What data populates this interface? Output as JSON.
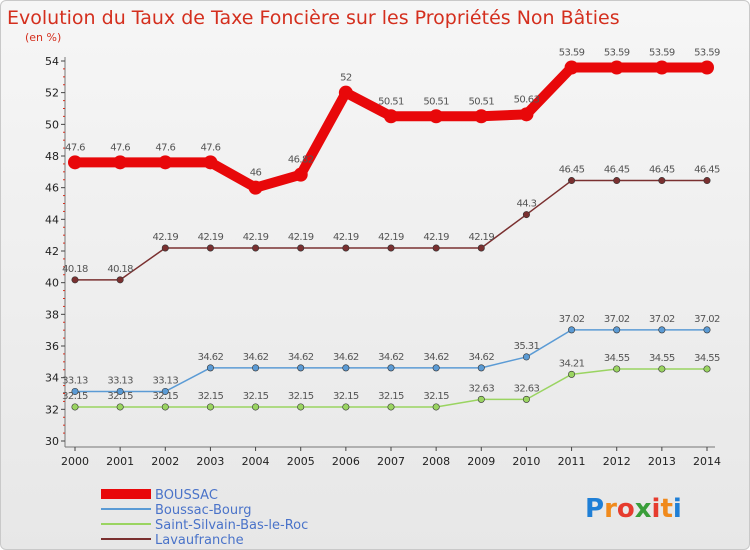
{
  "chart_data": {
    "type": "line",
    "title": "Evolution du Taux de Taxe Foncière sur les Propriétés Non Bâties",
    "subtitle": "(en %)",
    "xlabel": "",
    "ylabel": "",
    "ylim": [
      30,
      54
    ],
    "yticks": [
      30,
      32,
      34,
      36,
      38,
      40,
      42,
      44,
      46,
      48,
      50,
      52,
      54
    ],
    "categories": [
      "2000",
      "2001",
      "2002",
      "2003",
      "2004",
      "2005",
      "2006",
      "2007",
      "2008",
      "2009",
      "2010",
      "2011",
      "2012",
      "2013",
      "2014"
    ],
    "series": [
      {
        "name": "BOUSSAC",
        "color": "#e8080a",
        "emphasis": true,
        "values": [
          47.6,
          47.6,
          47.6,
          47.6,
          46,
          46.82,
          52,
          50.51,
          50.51,
          50.51,
          50.63,
          53.59,
          53.59,
          53.59,
          53.59
        ],
        "labels": [
          "47.6",
          "47.6",
          "47.6",
          "47.6",
          "46",
          "46.82",
          "52",
          "50.51",
          "50.51",
          "50.51",
          "50.63",
          "53.59",
          "53.59",
          "53.59",
          "53.59"
        ]
      },
      {
        "name": "Boussac-Bourg",
        "color": "#5b9bd5",
        "values": [
          33.13,
          33.13,
          33.13,
          34.62,
          34.62,
          34.62,
          34.62,
          34.62,
          34.62,
          34.62,
          35.31,
          37.02,
          37.02,
          37.02,
          37.02
        ],
        "labels": [
          "33.13",
          "33.13",
          "33.13",
          "34.62",
          "34.62",
          "34.62",
          "34.62",
          "34.62",
          "34.62",
          "34.62",
          "35.31",
          "37.02",
          "37.02",
          "37.02",
          "37.02"
        ]
      },
      {
        "name": "Saint-Silvain-Bas-le-Roc",
        "color": "#9ad461",
        "values": [
          32.15,
          32.15,
          32.15,
          32.15,
          32.15,
          32.15,
          32.15,
          32.15,
          32.15,
          32.63,
          32.63,
          34.21,
          34.55,
          34.55,
          34.55
        ],
        "labels": [
          "32.15",
          "32.15",
          "32.15",
          "32.15",
          "32.15",
          "32.15",
          "32.15",
          "32.15",
          "32.15",
          "32.63",
          "32.63",
          "34.21",
          "34.55",
          "34.55",
          "34.55"
        ]
      },
      {
        "name": "Lavaufranche",
        "color": "#7a3030",
        "values": [
          40.18,
          40.18,
          42.19,
          42.19,
          42.19,
          42.19,
          42.19,
          42.19,
          42.19,
          42.19,
          44.3,
          46.45,
          46.45,
          46.45,
          46.45
        ],
        "labels": [
          "40.18",
          "40.18",
          "42.19",
          "42.19",
          "42.19",
          "42.19",
          "42.19",
          "42.19",
          "42.19",
          "42.19",
          "44.3",
          "46.45",
          "46.45",
          "46.45",
          "46.45"
        ]
      }
    ],
    "legend": "bottom-left",
    "grid": false
  },
  "brand": {
    "letters": [
      "P",
      "r",
      "o",
      "x",
      "i",
      "t",
      "i"
    ],
    "colors": [
      "#1f7fd6",
      "#f08a1c",
      "#e63b2e",
      "#3a9e3a",
      "#e63b2e",
      "#f08a1c",
      "#1f7fd6"
    ]
  }
}
